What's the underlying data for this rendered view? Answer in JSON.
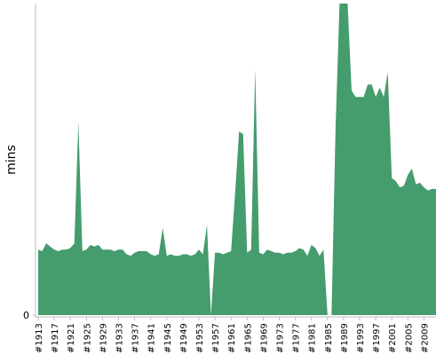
{
  "chart_data": {
    "type": "area",
    "y_label": "mins",
    "color": "#459c6c",
    "ylim": [
      0,
      100
    ],
    "yticks": [
      0
    ],
    "categories": [
      "#1913",
      null,
      null,
      null,
      "#1917",
      null,
      null,
      null,
      "#1921",
      null,
      null,
      null,
      "#1925",
      null,
      null,
      null,
      "#1929",
      null,
      null,
      null,
      "#1933",
      null,
      null,
      null,
      "#1937",
      null,
      null,
      null,
      "#1941",
      null,
      null,
      null,
      "#1945",
      null,
      null,
      null,
      "#1949",
      null,
      null,
      null,
      "#1953",
      null,
      null,
      null,
      "#1957",
      null,
      null,
      null,
      "#1961",
      null,
      null,
      null,
      "#1965",
      null,
      null,
      null,
      "#1969",
      null,
      null,
      null,
      "#1973",
      null,
      null,
      null,
      "#1977",
      null,
      null,
      null,
      "#1981",
      null,
      null,
      null,
      "#1985",
      null,
      null,
      null,
      "#1989",
      null,
      null,
      null,
      "#1993",
      null,
      null,
      null,
      "#1997",
      null,
      null,
      null,
      "#2001",
      null,
      null,
      null,
      "#2005",
      null,
      null,
      null,
      "#2009",
      null,
      null,
      null
    ],
    "values": [
      21,
      20.5,
      23,
      22,
      21,
      20.5,
      21,
      21,
      21.5,
      23,
      62,
      20.5,
      21,
      22.5,
      22,
      22.5,
      21,
      21,
      21,
      20.5,
      21,
      21,
      19.5,
      19,
      20,
      20.5,
      20.5,
      20.5,
      19.5,
      19,
      19.5,
      28,
      19,
      19.5,
      19,
      19,
      19.5,
      19.5,
      19,
      19.5,
      21,
      19.5,
      29,
      0,
      20,
      20,
      19.5,
      20,
      20.5,
      39,
      59,
      58,
      20,
      21,
      79,
      20,
      19.5,
      21,
      20.5,
      20,
      20,
      19.5,
      20,
      20,
      20.5,
      21.5,
      21,
      19,
      22.5,
      21.5,
      19,
      21,
      0,
      0,
      60,
      100,
      100,
      100,
      72,
      70,
      70,
      70,
      74,
      74,
      70,
      73,
      70,
      78,
      44,
      43,
      41,
      41.5,
      45,
      47,
      42,
      42.5,
      41,
      40,
      40.5,
      40.5
    ]
  }
}
